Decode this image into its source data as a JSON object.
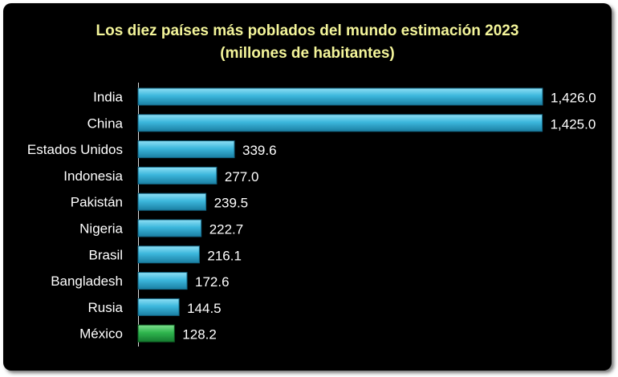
{
  "chart_data": {
    "type": "bar",
    "orientation": "horizontal",
    "title": "Los diez países más poblados del mundo estimación 2023",
    "subtitle": "(millones de habitantes)",
    "categories": [
      "India",
      "China",
      "Estados Unidos",
      "Indonesia",
      "Pakistán",
      "Nigeria",
      "Brasil",
      "Bangladesh",
      "Rusia",
      "México"
    ],
    "values": [
      1426.0,
      1425.0,
      339.6,
      277.0,
      239.5,
      222.7,
      216.1,
      172.6,
      144.5,
      128.2
    ],
    "value_labels": [
      "1,426.0",
      "1,425.0",
      "339.6",
      "277.0",
      "239.5",
      "222.7",
      "216.1",
      "172.6",
      "144.5",
      "128.2"
    ],
    "highlight_category": "México",
    "xlim": [
      0,
      1426
    ],
    "xlabel": "",
    "ylabel": "",
    "grid": false,
    "legend": "none",
    "colors": {
      "background": "#000000",
      "title": "#f4f59a",
      "bar": "#35b3d8",
      "bar_highlight": "#29b34c",
      "text": "#ffffff"
    }
  }
}
